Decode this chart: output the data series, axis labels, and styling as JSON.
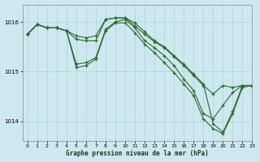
{
  "title": "Graphe pression niveau de la mer (hPa)",
  "background_color": "#cde8f0",
  "grid_color": "#b0d4c8",
  "line_color": "#2d6a2d",
  "xlim": [
    -0.5,
    23
  ],
  "ylim": [
    1013.6,
    1016.35
  ],
  "yticks": [
    1014,
    1015,
    1016
  ],
  "xticks": [
    0,
    1,
    2,
    3,
    4,
    5,
    6,
    7,
    8,
    9,
    10,
    11,
    12,
    13,
    14,
    15,
    16,
    17,
    18,
    19,
    20,
    21,
    22,
    23
  ],
  "series": [
    [
      1015.75,
      1015.95,
      1015.88,
      1015.88,
      1015.82,
      1015.72,
      1015.68,
      1015.72,
      1016.05,
      1016.08,
      1016.08,
      1015.92,
      1015.75,
      1015.6,
      1015.48,
      1015.3,
      1015.12,
      1014.92,
      1014.72,
      1014.55,
      1014.72,
      1014.68,
      1014.72,
      1014.72
    ],
    [
      1015.75,
      1015.95,
      1015.88,
      1015.88,
      1015.82,
      1015.65,
      1015.62,
      1015.62,
      1016.05,
      1016.08,
      1016.08,
      1015.98,
      1015.8,
      1015.62,
      1015.5,
      1015.32,
      1015.15,
      1014.95,
      1014.75,
      1013.95,
      1013.78,
      1014.2,
      1014.72,
      1014.72
    ],
    [
      1015.75,
      1015.95,
      1015.88,
      1015.88,
      1015.82,
      1015.15,
      1015.18,
      1015.28,
      1015.85,
      1016.0,
      1016.05,
      1015.88,
      1015.62,
      1015.48,
      1015.32,
      1015.12,
      1014.85,
      1014.62,
      1014.15,
      1014.05,
      1014.32,
      1014.58,
      1014.72,
      1014.72
    ],
    [
      1015.75,
      1015.95,
      1015.88,
      1015.88,
      1015.82,
      1015.08,
      1015.12,
      1015.25,
      1015.82,
      1015.98,
      1015.98,
      1015.78,
      1015.55,
      1015.38,
      1015.18,
      1014.98,
      1014.75,
      1014.52,
      1014.05,
      1013.85,
      1013.75,
      1014.15,
      1014.68,
      1014.72
    ]
  ]
}
